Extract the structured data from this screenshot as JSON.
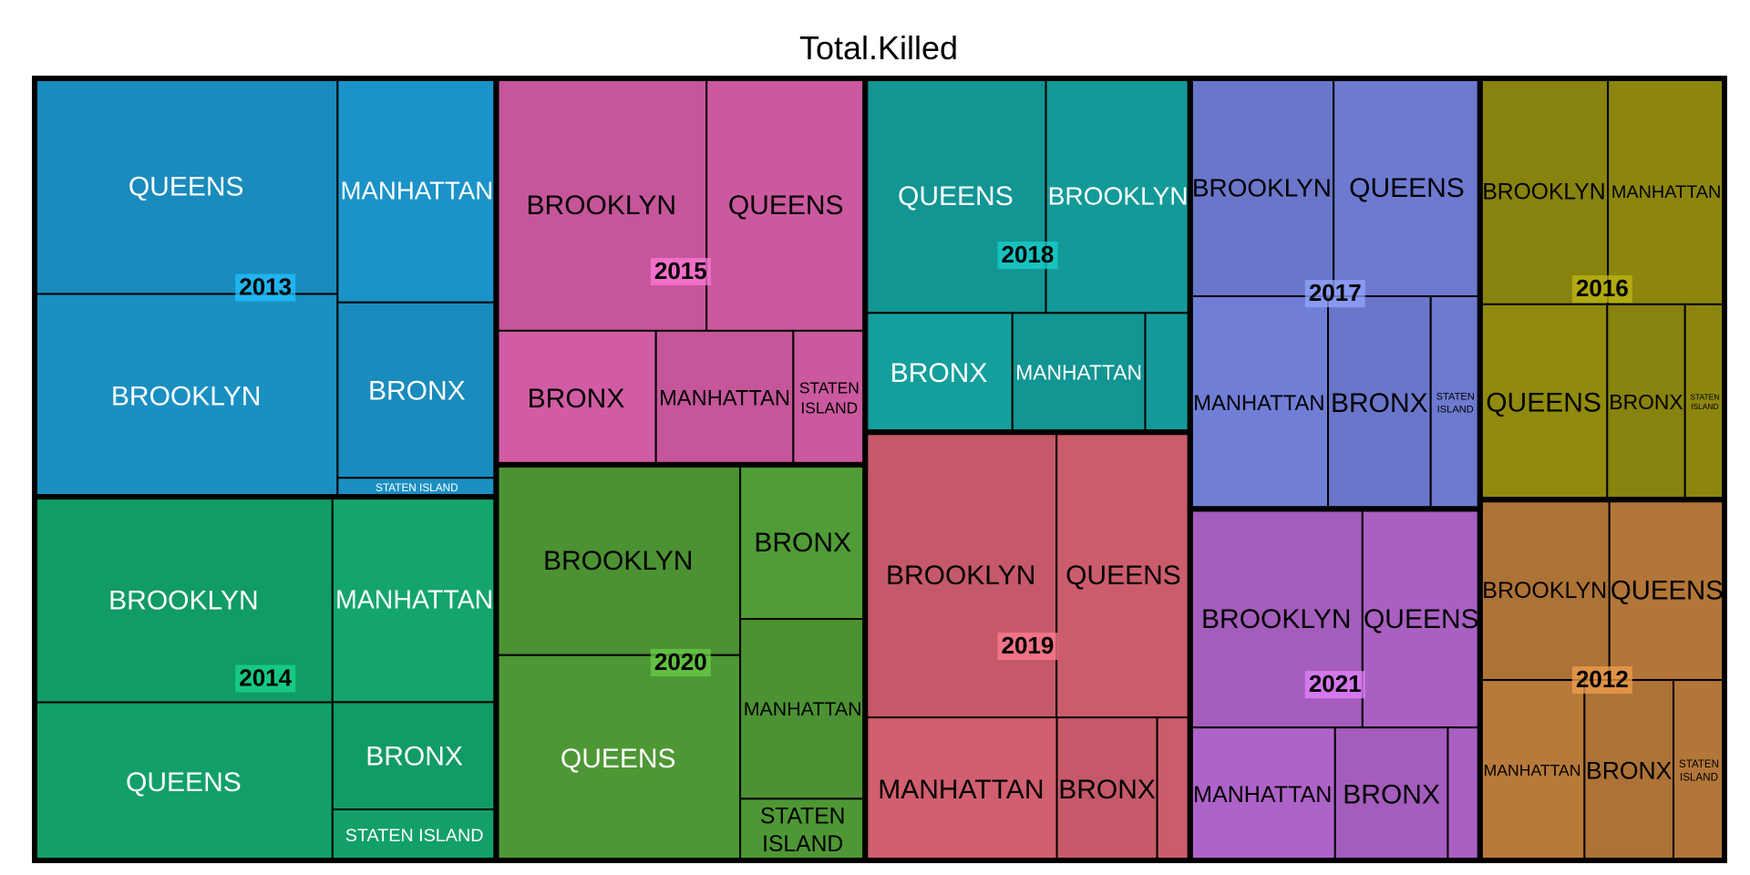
{
  "chart_data": {
    "type": "treemap",
    "title": "Total.Killed",
    "groups": [
      {
        "name": "2013",
        "color": "#1a8fc2",
        "children": [
          {
            "label": "QUEENS",
            "value": 30.5,
            "light": true
          },
          {
            "label": "BROOKLYN",
            "value": 28.7,
            "light": true
          },
          {
            "label": "MANHATTAN",
            "value": 16.6,
            "light": true
          },
          {
            "label": "BRONX",
            "value": 13.0,
            "light": true
          },
          {
            "label": "STATEN ISLAND",
            "value": 1.4,
            "light": true
          }
        ]
      },
      {
        "name": "2014",
        "color": "#12a068",
        "children": [
          {
            "label": "BROOKLYN",
            "value": 28.6,
            "light": true
          },
          {
            "label": "QUEENS",
            "value": 22.0,
            "light": true
          },
          {
            "label": "MANHATTAN",
            "value": 15.7,
            "light": true
          },
          {
            "label": "BRONX",
            "value": 8.2,
            "light": true
          },
          {
            "label": "STATEN ISLAND",
            "value": 3.9,
            "light": true
          }
        ]
      },
      {
        "name": "2015",
        "color": "#cb599f",
        "children": [
          {
            "label": "BROOKLYN",
            "value": 24.8
          },
          {
            "label": "QUEENS",
            "value": 18.7
          },
          {
            "label": "BRONX",
            "value": 10.0
          },
          {
            "label": "MANHATTAN",
            "value": 8.6
          },
          {
            "label": "STATEN ISLAND",
            "value": 4.5
          }
        ]
      },
      {
        "name": "2020",
        "color": "#4e9735",
        "children": [
          {
            "label": "BROOKLYN",
            "value": 21.7
          },
          {
            "label": "QUEENS",
            "value": 23.4,
            "light": true
          },
          {
            "label": "BRONX",
            "value": 9.0
          },
          {
            "label": "MANHATTAN",
            "value": 10.5
          },
          {
            "label": "STATEN ISLAND",
            "value": 3.6
          }
        ]
      },
      {
        "name": "2018",
        "color": "#139a98",
        "children": [
          {
            "label": "QUEENS",
            "value": 19.8,
            "light": true
          },
          {
            "label": "BROOKLYN",
            "value": 15.8,
            "light": true
          },
          {
            "label": "BRONX",
            "value": 8.2,
            "light": true
          },
          {
            "label": "MANHATTAN",
            "value": 7.4,
            "light": true
          },
          {
            "label": "",
            "value": 2.5
          }
        ]
      },
      {
        "name": "2019",
        "color": "#cb5c6c",
        "children": [
          {
            "label": "BROOKLYN",
            "value": 25.5
          },
          {
            "label": "QUEENS",
            "value": 17.8
          },
          {
            "label": "MANHATTAN",
            "value": 12.8
          },
          {
            "label": "BRONX",
            "value": 6.7
          },
          {
            "label": "",
            "value": 2.2
          }
        ]
      },
      {
        "name": "2017",
        "color": "#6d7ad0",
        "children": [
          {
            "label": "BROOKLYN",
            "value": 14.6
          },
          {
            "label": "QUEENS",
            "value": 14.9
          },
          {
            "label": "MANHATTAN",
            "value": 13.7
          },
          {
            "label": "BRONX",
            "value": 10.2
          },
          {
            "label": "STATEN ISLAND",
            "value": 4.9
          }
        ]
      },
      {
        "name": "2021",
        "color": "#a960c2",
        "children": [
          {
            "label": "BROOKLYN",
            "value": 17.6
          },
          {
            "label": "QUEENS",
            "value": 12.0
          },
          {
            "label": "MANHATTAN",
            "value": 9.0
          },
          {
            "label": "BRONX",
            "value": 7.0
          },
          {
            "label": "",
            "value": 2.0
          }
        ]
      },
      {
        "name": "2016",
        "color": "#8c860e",
        "children": [
          {
            "label": "BROOKLYN",
            "value": 13.5
          },
          {
            "label": "MANHATTAN",
            "value": 12.3
          },
          {
            "label": "QUEENS",
            "value": 11.6
          },
          {
            "label": "BRONX",
            "value": 7.1
          },
          {
            "label": "STATEN ISLAND",
            "value": 3.6
          }
        ]
      },
      {
        "name": "2012",
        "color": "#b27638",
        "children": [
          {
            "label": "BROOKLYN",
            "value": 10.9
          },
          {
            "label": "QUEENS",
            "value": 9.7
          },
          {
            "label": "MANHATTAN",
            "value": 8.8
          },
          {
            "label": "BRONX",
            "value": 7.5
          },
          {
            "label": "STATEN ISLAND",
            "value": 4.3
          }
        ]
      }
    ]
  }
}
